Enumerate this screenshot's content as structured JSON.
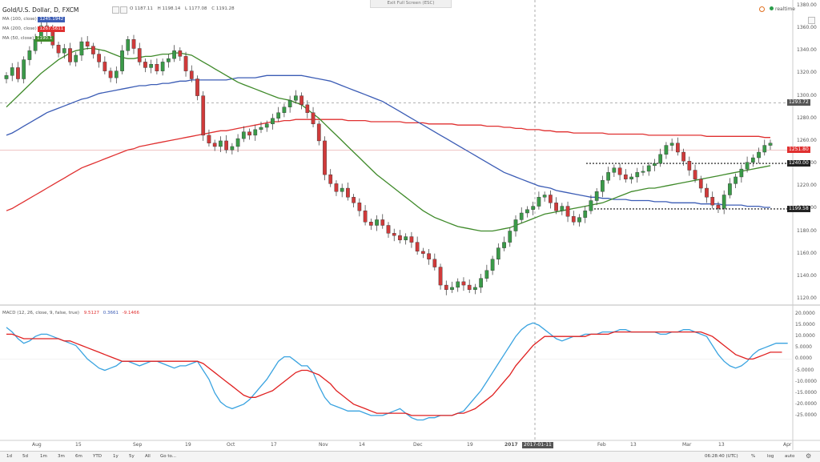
{
  "header": {
    "symbol": "Gold/U.S. Dollar, D, FXCM",
    "ohlc": [
      "O 1187.11",
      "H 1198.14",
      "L 1177.08",
      "C 1191.28"
    ],
    "exit_label": "Exit Full Screen (ESC)",
    "realtime_label": "realtime"
  },
  "legend": [
    {
      "label": "MA (100, close)",
      "value": "1245.1942",
      "color": "#3b5cb5"
    },
    {
      "label": "MA (200, close)",
      "value": "1267.5611",
      "color": "#e03030"
    },
    {
      "label": "MA (50, close)",
      "value": "1190.1",
      "color": "#3f8a2a"
    }
  ],
  "macd": {
    "label": "MACD (12, 26, close, 9, false, true)",
    "values": [
      "9.5127",
      "0.3661",
      "-9.1466"
    ],
    "colors": [
      "#e03030",
      "#3b5cb5",
      "#e03030"
    ]
  },
  "price_axis": [
    "1380.00",
    "1360.00",
    "1340.00",
    "1320.00",
    "1300.00",
    "1280.00",
    "1260.00",
    "1240.00",
    "1220.00",
    "1200.00",
    "1180.00",
    "1160.00",
    "1140.00",
    "1120.00"
  ],
  "macd_axis": [
    "20.0000",
    "15.0000",
    "10.0000",
    "5.0000",
    "0.0000",
    "-5.0000",
    "-10.0000",
    "-15.0000",
    "-20.0000",
    "-25.0000"
  ],
  "price_tags": [
    {
      "text": "1293.72",
      "price": 1293.72,
      "bg": "#555555"
    },
    {
      "text": "1251.80",
      "price": 1251.8,
      "bg": "#e03030"
    },
    {
      "text": "1240.00",
      "price": 1240,
      "bg": "#222222"
    },
    {
      "text": "1199.58",
      "price": 1199.58,
      "bg": "#222222"
    }
  ],
  "time_axis": [
    "Aug",
    "15",
    "Sep",
    "19",
    "Oct",
    "17",
    "Nov",
    "14",
    "Dec",
    "19",
    "2017",
    "6",
    "Feb",
    "13",
    "Mar",
    "13",
    "Apr"
  ],
  "crosshair_date": "2017-01-11",
  "footer": {
    "timeframes": [
      "1d",
      "5d",
      "1m",
      "3m",
      "6m",
      "YTD",
      "1y",
      "5y",
      "All",
      "Go to..."
    ],
    "time": "06:28:40 (UTC)",
    "toggles": [
      "%",
      "log",
      "auto"
    ]
  },
  "chart_data": {
    "type": "candlestick",
    "symbol": "Gold/U.S. Dollar",
    "ylim": [
      1115,
      1385
    ],
    "horizontal_levels": [
      1293.72,
      1240,
      1199.58
    ],
    "closes": [
      1318,
      1325,
      1315,
      1332,
      1340,
      1350,
      1362,
      1358,
      1345,
      1338,
      1342,
      1330,
      1336,
      1348,
      1344,
      1337,
      1330,
      1322,
      1316,
      1322,
      1340,
      1350,
      1342,
      1330,
      1325,
      1328,
      1322,
      1330,
      1333,
      1340,
      1335,
      1322,
      1315,
      1300,
      1265,
      1258,
      1255,
      1260,
      1252,
      1255,
      1262,
      1268,
      1265,
      1270,
      1272,
      1275,
      1280,
      1285,
      1290,
      1296,
      1300,
      1292,
      1285,
      1275,
      1260,
      1230,
      1222,
      1215,
      1218,
      1210,
      1205,
      1198,
      1188,
      1185,
      1190,
      1185,
      1178,
      1176,
      1172,
      1175,
      1170,
      1162,
      1160,
      1155,
      1148,
      1132,
      1128,
      1130,
      1135,
      1132,
      1128,
      1130,
      1138,
      1145,
      1155,
      1165,
      1170,
      1180,
      1190,
      1196,
      1199,
      1202,
      1210,
      1212,
      1205,
      1198,
      1202,
      1193,
      1188,
      1192,
      1198,
      1207,
      1215,
      1225,
      1232,
      1236,
      1230,
      1226,
      1228,
      1232,
      1233,
      1238,
      1240,
      1248,
      1256,
      1258,
      1250,
      1242,
      1234,
      1226,
      1218,
      1210,
      1203,
      1200,
      1212,
      1222,
      1228,
      1235,
      1241,
      1245,
      1250,
      1256,
      1258
    ],
    "ma50": [
      1290,
      1295,
      1300,
      1305,
      1310,
      1315,
      1320,
      1324,
      1328,
      1332,
      1335,
      1338,
      1340,
      1341,
      1342,
      1342,
      1341,
      1340,
      1338,
      1336,
      1334,
      1333,
      1333,
      1334,
      1335,
      1335,
      1336,
      1337,
      1337,
      1338,
      1338,
      1337,
      1336,
      1333,
      1330,
      1327,
      1324,
      1321,
      1318,
      1315,
      1312,
      1310,
      1308,
      1306,
      1304,
      1302,
      1300,
      1298,
      1297,
      1296,
      1294,
      1292,
      1288,
      1284,
      1280,
      1275,
      1270,
      1265,
      1260,
      1255,
      1250,
      1245,
      1240,
      1235,
      1230,
      1226,
      1222,
      1218,
      1214,
      1210,
      1206,
      1202,
      1198,
      1195,
      1192,
      1190,
      1188,
      1186,
      1184,
      1183,
      1182,
      1181,
      1180,
      1180,
      1180,
      1181,
      1182,
      1183,
      1185,
      1187,
      1189,
      1191,
      1193,
      1195,
      1196,
      1197,
      1198,
      1199,
      1200,
      1201,
      1202,
      1203,
      1204,
      1205,
      1207,
      1209,
      1211,
      1213,
      1215,
      1216,
      1217,
      1218,
      1218,
      1219,
      1220,
      1221,
      1222,
      1223,
      1224,
      1225,
      1226,
      1227,
      1228,
      1229,
      1230,
      1231,
      1232,
      1233,
      1234,
      1235,
      1236,
      1237,
      1238
    ],
    "ma100": [
      1265,
      1267,
      1270,
      1273,
      1276,
      1279,
      1282,
      1285,
      1287,
      1289,
      1291,
      1293,
      1295,
      1297,
      1298,
      1300,
      1302,
      1303,
      1304,
      1305,
      1306,
      1307,
      1308,
      1309,
      1309,
      1310,
      1310,
      1311,
      1311,
      1312,
      1313,
      1313,
      1314,
      1314,
      1314,
      1314,
      1314,
      1314,
      1314,
      1315,
      1316,
      1316,
      1316,
      1316,
      1317,
      1318,
      1318,
      1318,
      1318,
      1318,
      1318,
      1318,
      1317,
      1316,
      1315,
      1314,
      1313,
      1311,
      1309,
      1307,
      1305,
      1303,
      1301,
      1299,
      1297,
      1295,
      1292,
      1289,
      1286,
      1283,
      1280,
      1277,
      1274,
      1271,
      1268,
      1265,
      1262,
      1259,
      1256,
      1253,
      1250,
      1247,
      1244,
      1241,
      1238,
      1235,
      1232,
      1230,
      1228,
      1226,
      1224,
      1222,
      1220,
      1219,
      1218,
      1216,
      1215,
      1214,
      1213,
      1212,
      1211,
      1210,
      1210,
      1209,
      1209,
      1208,
      1208,
      1208,
      1207,
      1207,
      1207,
      1207,
      1206,
      1206,
      1206,
      1205,
      1205,
      1205,
      1205,
      1205,
      1204,
      1204,
      1204,
      1204,
      1203,
      1203,
      1203,
      1203,
      1202,
      1202,
      1202,
      1201,
      1201
    ],
    "ma200": [
      1198,
      1200,
      1203,
      1206,
      1209,
      1212,
      1215,
      1218,
      1221,
      1224,
      1227,
      1230,
      1233,
      1236,
      1238,
      1240,
      1242,
      1244,
      1246,
      1248,
      1250,
      1252,
      1253,
      1255,
      1256,
      1257,
      1258,
      1259,
      1260,
      1261,
      1262,
      1263,
      1264,
      1265,
      1266,
      1267,
      1268,
      1269,
      1269,
      1270,
      1271,
      1272,
      1273,
      1274,
      1275,
      1276,
      1277,
      1277,
      1278,
      1278,
      1279,
      1279,
      1279,
      1279,
      1279,
      1279,
      1279,
      1279,
      1279,
      1278,
      1278,
      1278,
      1278,
      1277,
      1277,
      1277,
      1277,
      1277,
      1277,
      1276,
      1276,
      1276,
      1276,
      1275,
      1275,
      1275,
      1275,
      1275,
      1274,
      1274,
      1274,
      1274,
      1274,
      1273,
      1273,
      1273,
      1272,
      1272,
      1271,
      1271,
      1270,
      1270,
      1270,
      1269,
      1269,
      1268,
      1268,
      1268,
      1267,
      1267,
      1267,
      1267,
      1267,
      1267,
      1266,
      1266,
      1266,
      1266,
      1266,
      1266,
      1266,
      1265,
      1265,
      1265,
      1265,
      1265,
      1265,
      1265,
      1265,
      1265,
      1265,
      1264,
      1264,
      1264,
      1264,
      1264,
      1264,
      1264,
      1264,
      1264,
      1264,
      1263,
      1263
    ],
    "macd_line": [
      14,
      12,
      9,
      7,
      8,
      10,
      11,
      11,
      10,
      9,
      8,
      7,
      6,
      3,
      0,
      -2,
      -4,
      -5,
      -4,
      -3,
      -1,
      -1,
      -2,
      -3,
      -2,
      -1,
      -1,
      -2,
      -3,
      -4,
      -3,
      -3,
      -2,
      -1,
      -5,
      -9,
      -15,
      -19,
      -21,
      -22,
      -21,
      -20,
      -18,
      -15,
      -12,
      -9,
      -5,
      -1,
      1,
      1,
      -1,
      -3,
      -3,
      -6,
      -12,
      -17,
      -20,
      -21,
      -22,
      -23,
      -23,
      -23,
      -24,
      -25,
      -25,
      -25,
      -24,
      -23,
      -22,
      -24,
      -26,
      -27,
      -27,
      -26,
      -26,
      -25,
      -25,
      -25,
      -24,
      -23,
      -20,
      -17,
      -14,
      -10,
      -6,
      -2,
      2,
      6,
      10,
      13,
      15,
      16,
      15,
      13,
      11,
      9,
      8,
      9,
      10,
      10,
      11,
      11,
      11,
      12,
      12,
      12,
      13,
      13,
      12,
      12,
      12,
      12,
      12,
      11,
      11,
      12,
      12,
      13,
      13,
      12,
      11,
      10,
      6,
      2,
      -1,
      -3,
      -4,
      -3,
      -1,
      2,
      4,
      5,
      6,
      7,
      7,
      7
    ],
    "macd_signal": [
      11,
      11,
      10,
      9,
      9,
      9,
      9,
      9,
      9,
      9,
      8,
      8,
      7,
      6,
      5,
      4,
      3,
      2,
      1,
      0,
      -1,
      -1,
      -1,
      -1,
      -1,
      -1,
      -1,
      -1,
      -1,
      -1,
      -1,
      -1,
      -1,
      -1,
      -2,
      -4,
      -6,
      -8,
      -10,
      -12,
      -14,
      -16,
      -17,
      -17,
      -16,
      -15,
      -14,
      -12,
      -10,
      -8,
      -6,
      -5,
      -5,
      -6,
      -7,
      -9,
      -11,
      -14,
      -16,
      -18,
      -20,
      -21,
      -22,
      -23,
      -24,
      -24,
      -24,
      -24,
      -24,
      -24,
      -25,
      -25,
      -25,
      -25,
      -25,
      -25,
      -25,
      -25,
      -24,
      -24,
      -23,
      -22,
      -20,
      -18,
      -16,
      -13,
      -10,
      -7,
      -3,
      0,
      3,
      6,
      8,
      10,
      10,
      10,
      10,
      10,
      10,
      10,
      10,
      11,
      11,
      11,
      11,
      12,
      12,
      12,
      12,
      12,
      12,
      12,
      12,
      12,
      12,
      12,
      12,
      12,
      12,
      12,
      12,
      11,
      10,
      8,
      6,
      4,
      2,
      1,
      0,
      0,
      1,
      2,
      3,
      3,
      3
    ]
  }
}
